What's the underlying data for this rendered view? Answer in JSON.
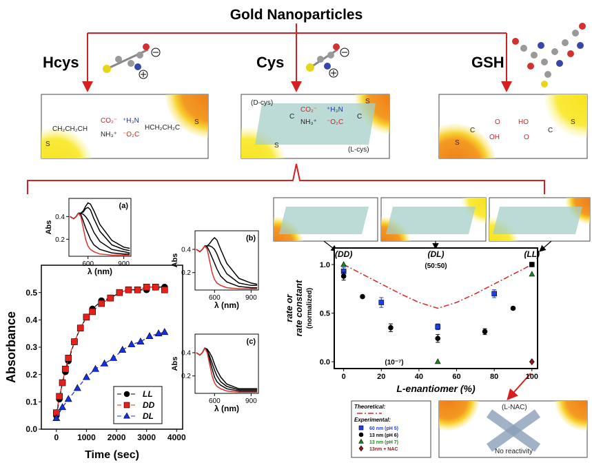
{
  "diagram": {
    "title": "Gold Nanoparticles",
    "ligands": [
      "Hcys",
      "Cys",
      "GSH"
    ],
    "hcys_box": [
      "S",
      "CH₂CH₂CH",
      "CO₂⁻",
      "NH₃⁺",
      "⁺H₃N",
      "⁻O₂C",
      "HCH₂CH₂C",
      "S"
    ],
    "cys_box": [
      "(D-cys)",
      "(L-cys)",
      "CO₂⁻",
      "NH₃⁺",
      "⁺H₃N",
      "⁻O₂C",
      "C",
      "C",
      "S",
      "S"
    ],
    "gsh_box": [
      "S",
      "C",
      "O",
      "OH",
      "HO",
      "O",
      "C",
      "S"
    ],
    "nac_box": [
      "(L-NAC)",
      "No reactivity"
    ]
  },
  "chart_data": [
    {
      "type": "line",
      "xlabel": "Time (sec)",
      "ylabel": "Absorbance",
      "xlim": [
        -500,
        4200
      ],
      "xticks": [
        0,
        1000,
        2000,
        3000,
        4000
      ],
      "ylim": [
        0,
        0.6
      ],
      "yticks": [
        {
          "value": 0,
          "label": "0.0"
        },
        0.1,
        0.2,
        0.3,
        0.4,
        0.5
      ],
      "legend": "lower right",
      "series": [
        {
          "name": "LL",
          "color": "#000000",
          "marker": "circle",
          "line_style": "dashed",
          "x": [
            0,
            100,
            200,
            300,
            400,
            600,
            800,
            1000,
            1200,
            1500,
            1800,
            2100,
            2400,
            2700,
            3000,
            3300,
            3600
          ],
          "values": [
            0.05,
            0.11,
            0.17,
            0.21,
            0.25,
            0.32,
            0.37,
            0.41,
            0.44,
            0.47,
            0.48,
            0.5,
            0.51,
            0.51,
            0.51,
            0.52,
            0.52
          ]
        },
        {
          "name": "DD",
          "color": "#e8201c",
          "marker": "square",
          "line_style": "dashed",
          "x": [
            0,
            100,
            200,
            300,
            400,
            600,
            800,
            1000,
            1200,
            1500,
            1800,
            2100,
            2400,
            2700,
            3000,
            3300,
            3600
          ],
          "values": [
            0.06,
            0.12,
            0.17,
            0.22,
            0.26,
            0.32,
            0.37,
            0.41,
            0.43,
            0.46,
            0.48,
            0.5,
            0.51,
            0.51,
            0.52,
            0.52,
            0.51
          ]
        },
        {
          "name": "DL",
          "color": "#1530e0",
          "marker": "triangle",
          "line_style": "dashed",
          "x": [
            0,
            200,
            400,
            700,
            1000,
            1300,
            1600,
            1900,
            2200,
            2500,
            2800,
            3100,
            3400,
            3600
          ],
          "values": [
            0.04,
            0.08,
            0.11,
            0.15,
            0.19,
            0.22,
            0.24,
            0.26,
            0.29,
            0.31,
            0.32,
            0.34,
            0.35,
            0.355
          ]
        }
      ]
    },
    {
      "type": "line",
      "label": "(a)",
      "xlabel": "λ (nm)",
      "ylabel": "Abs",
      "xlim": [
        440,
        960
      ],
      "xticks": [
        600,
        900
      ],
      "ylim": [
        0.05,
        0.56
      ],
      "yticks": [
        0.2,
        0.4
      ],
      "x": [
        450,
        480,
        500,
        520,
        540,
        560,
        580,
        600,
        620,
        650,
        700,
        800,
        900,
        950
      ],
      "series": [
        {
          "color": "#000000",
          "values": [
            0.4,
            0.38,
            0.4,
            0.43,
            0.42,
            0.36,
            0.3,
            0.25,
            0.2,
            0.15,
            0.11,
            0.08,
            0.07,
            0.07
          ]
        },
        {
          "color": "#000000",
          "values": [
            0.4,
            0.38,
            0.4,
            0.43,
            0.43,
            0.42,
            0.4,
            0.37,
            0.33,
            0.26,
            0.18,
            0.11,
            0.09,
            0.08
          ]
        },
        {
          "color": "#000000",
          "values": [
            0.4,
            0.38,
            0.4,
            0.43,
            0.43,
            0.44,
            0.47,
            0.48,
            0.46,
            0.38,
            0.27,
            0.15,
            0.11,
            0.1
          ]
        },
        {
          "color": "#000000",
          "values": [
            0.4,
            0.38,
            0.4,
            0.43,
            0.43,
            0.45,
            0.49,
            0.52,
            0.51,
            0.45,
            0.33,
            0.19,
            0.13,
            0.12
          ]
        },
        {
          "color": "#e03030",
          "values": [
            0.4,
            0.38,
            0.4,
            0.43,
            0.4,
            0.3,
            0.2,
            0.14,
            0.11,
            0.09,
            0.07,
            0.06,
            0.06,
            0.06
          ]
        }
      ]
    },
    {
      "type": "line",
      "label": "(b)",
      "xlabel": "λ (nm)",
      "ylabel": "Abs",
      "xlim": [
        440,
        960
      ],
      "xticks": [
        600,
        900
      ],
      "ylim": [
        0.05,
        0.56
      ],
      "yticks": [
        0.2,
        0.4
      ],
      "x": [
        450,
        480,
        500,
        520,
        540,
        560,
        580,
        600,
        620,
        650,
        700,
        800,
        900,
        950
      ],
      "series": [
        {
          "color": "#000000",
          "values": [
            0.4,
            0.38,
            0.4,
            0.43,
            0.42,
            0.38,
            0.33,
            0.28,
            0.23,
            0.17,
            0.12,
            0.08,
            0.07,
            0.07
          ]
        },
        {
          "color": "#000000",
          "values": [
            0.4,
            0.38,
            0.4,
            0.43,
            0.43,
            0.43,
            0.42,
            0.4,
            0.36,
            0.28,
            0.19,
            0.11,
            0.09,
            0.09
          ]
        },
        {
          "color": "#000000",
          "values": [
            0.4,
            0.38,
            0.4,
            0.43,
            0.43,
            0.45,
            0.48,
            0.5,
            0.48,
            0.4,
            0.28,
            0.15,
            0.11,
            0.1
          ]
        },
        {
          "color": "#e03030",
          "values": [
            0.4,
            0.38,
            0.4,
            0.43,
            0.4,
            0.3,
            0.2,
            0.14,
            0.11,
            0.09,
            0.07,
            0.06,
            0.06,
            0.06
          ]
        }
      ]
    },
    {
      "type": "line",
      "label": "(c)",
      "xlabel": "λ (nm)",
      "ylabel": "Abs",
      "xlim": [
        440,
        960
      ],
      "xticks": [
        600,
        900
      ],
      "ylim": [
        0.05,
        0.56
      ],
      "yticks": [
        0.2,
        0.4
      ],
      "x": [
        450,
        480,
        500,
        520,
        540,
        560,
        580,
        600,
        620,
        650,
        700,
        800,
        900,
        950
      ],
      "series": [
        {
          "color": "#000000",
          "values": [
            0.4,
            0.38,
            0.4,
            0.44,
            0.41,
            0.34,
            0.26,
            0.19,
            0.15,
            0.12,
            0.09,
            0.07,
            0.07,
            0.07
          ]
        },
        {
          "color": "#000000",
          "values": [
            0.4,
            0.38,
            0.4,
            0.44,
            0.42,
            0.37,
            0.31,
            0.25,
            0.2,
            0.15,
            0.11,
            0.08,
            0.08,
            0.08
          ]
        },
        {
          "color": "#000000",
          "values": [
            0.4,
            0.38,
            0.4,
            0.44,
            0.43,
            0.4,
            0.36,
            0.3,
            0.25,
            0.19,
            0.13,
            0.09,
            0.09,
            0.09
          ]
        },
        {
          "color": "#e03030",
          "values": [
            0.4,
            0.38,
            0.4,
            0.44,
            0.4,
            0.3,
            0.2,
            0.14,
            0.11,
            0.09,
            0.07,
            0.06,
            0.06,
            0.06
          ]
        }
      ]
    },
    {
      "type": "scatter",
      "xlabel": "L-enantiomer (%)",
      "ylabel": [
        "rate or",
        "rate constant"
      ],
      "ylabel_note": "(normalized)",
      "xlim": [
        -5,
        103
      ],
      "xticks": [
        0,
        20,
        40,
        60,
        80,
        100
      ],
      "ylim": [
        -0.07,
        1.17
      ],
      "yticks": [
        {
          "value": 0,
          "label": "0.0"
        },
        0.5,
        {
          "value": 1,
          "label": "1.0"
        }
      ],
      "legend_headings": [
        "Theoretical:",
        "Experimental:"
      ],
      "annotations": [
        "(DD)",
        "(DL)",
        "(50:50)",
        "(LL)",
        "(10⁻⁷)"
      ],
      "series": [
        {
          "color": "#e02020",
          "line_style": "dashdot",
          "x": [
            0,
            10,
            20,
            30,
            40,
            50,
            60,
            70,
            80,
            90,
            100
          ],
          "values": [
            1.0,
            0.9,
            0.8,
            0.7,
            0.61,
            0.55,
            0.61,
            0.7,
            0.8,
            0.9,
            1.0
          ]
        },
        {
          "name": "60 nm (pH 5)",
          "color": "#1f3fe0",
          "marker": "square",
          "x": [
            0,
            20,
            50,
            80,
            100
          ],
          "values": [
            0.93,
            0.61,
            0.36,
            0.7,
            1.0
          ],
          "errors": [
            0.04,
            0.05,
            0.03,
            0.04,
            0.01
          ]
        },
        {
          "name": "13 nm (pH 6)",
          "color": "#000000",
          "marker": "circle",
          "x": [
            0,
            10,
            25,
            50,
            75,
            90,
            100
          ],
          "values": [
            0.88,
            0.67,
            0.35,
            0.24,
            0.31,
            0.55,
            1.0
          ],
          "errors": [
            0.04,
            0.01,
            0.04,
            0.04,
            0.03,
            0.01,
            0.01
          ]
        },
        {
          "name": "13 nm (pH 7)",
          "color": "#1a8a1a",
          "marker": "triangle",
          "x": [
            0,
            50,
            100
          ],
          "values": [
            1.0,
            0.0,
            0.9
          ]
        },
        {
          "name": "13nm + NAC",
          "color": "#8b1a1a",
          "marker": "diamond",
          "x": [
            100
          ],
          "values": [
            0.0
          ]
        }
      ]
    }
  ]
}
